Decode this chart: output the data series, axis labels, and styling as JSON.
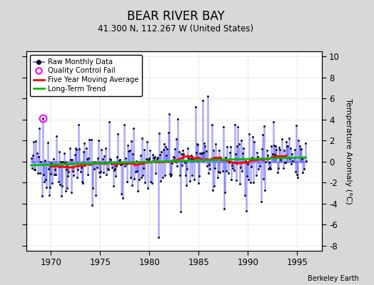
{
  "title": "BEAR RIVER BAY",
  "subtitle": "41.300 N, 112.267 W (United States)",
  "ylabel": "Temperature Anomaly (°C)",
  "credit": "Berkeley Earth",
  "xlim": [
    1967.5,
    1997.5
  ],
  "ylim": [
    -8.5,
    10.5
  ],
  "yticks": [
    -8,
    -6,
    -4,
    -2,
    0,
    2,
    4,
    6,
    8,
    10
  ],
  "xticks": [
    1970,
    1975,
    1980,
    1985,
    1990,
    1995
  ],
  "bg_color": "#d8d8d8",
  "plot_bg_color": "#ffffff",
  "raw_line_color": "#4444ff",
  "raw_marker_color": "#000000",
  "qc_fail_color": "#ff00ff",
  "moving_avg_color": "#ff0000",
  "trend_color": "#00bb00",
  "seed": 42,
  "n_months": 336,
  "start_year": 1968.0
}
